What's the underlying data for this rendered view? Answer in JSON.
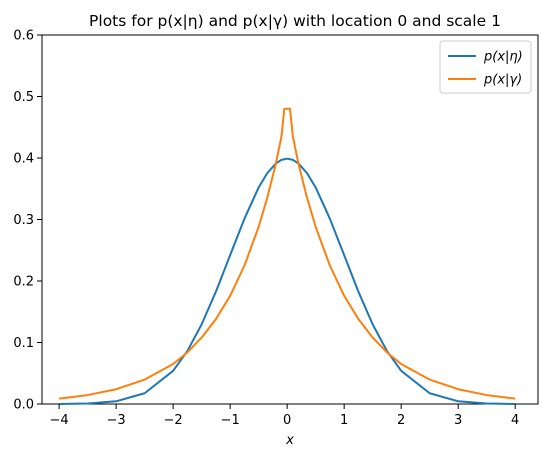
{
  "chart_data": {
    "type": "line",
    "title": "Plots for p(x|η) and p(x|γ) with location 0 and scale 1",
    "xlabel": "x",
    "ylabel": "",
    "xlim": [
      -4.3,
      4.4
    ],
    "ylim": [
      0,
      0.6
    ],
    "x_ticks": [
      -4,
      -3,
      -2,
      -1,
      0,
      1,
      2,
      3,
      4
    ],
    "x_tick_labels": [
      "−4",
      "−3",
      "−2",
      "−1",
      "0",
      "1",
      "2",
      "3",
      "4"
    ],
    "y_ticks": [
      0.0,
      0.1,
      0.2,
      0.3,
      0.4,
      0.5,
      0.6
    ],
    "y_tick_labels": [
      "0.0",
      "0.1",
      "0.2",
      "0.3",
      "0.4",
      "0.5",
      "0.6"
    ],
    "grid": false,
    "legend_position": "top-right",
    "colors": {
      "eta": "#1f77b4",
      "gamma": "#ff7f0e"
    },
    "x": [
      -4,
      -3.5,
      -3,
      -2.5,
      -2,
      -1.75,
      -1.5,
      -1.25,
      -1,
      -0.75,
      -0.5,
      -0.35,
      -0.2,
      -0.1,
      -0.05,
      0,
      0.05,
      0.1,
      0.2,
      0.35,
      0.5,
      0.75,
      1,
      1.25,
      1.5,
      1.75,
      2,
      2.5,
      3,
      3.5,
      4
    ],
    "series": [
      {
        "name": "p(x|η)",
        "values": [
          0.0001,
          0.0009,
          0.0044,
          0.0175,
          0.054,
          0.0863,
          0.1295,
          0.1826,
          0.242,
          0.3011,
          0.3521,
          0.3752,
          0.391,
          0.397,
          0.398,
          0.3989,
          0.398,
          0.397,
          0.391,
          0.3752,
          0.3521,
          0.3011,
          0.242,
          0.1826,
          0.1295,
          0.0863,
          0.054,
          0.0175,
          0.0044,
          0.0009,
          0.0001
        ]
      },
      {
        "name": "p(x|γ)",
        "values": [
          0.0088,
          0.0145,
          0.024,
          0.0397,
          0.065,
          0.084,
          0.108,
          0.138,
          0.176,
          0.225,
          0.288,
          0.335,
          0.39,
          0.435,
          0.48,
          0.48,
          0.48,
          0.435,
          0.39,
          0.335,
          0.288,
          0.225,
          0.176,
          0.138,
          0.108,
          0.084,
          0.065,
          0.0397,
          0.024,
          0.0145,
          0.0088
        ]
      }
    ]
  },
  "legend": {
    "items": [
      {
        "label": "p(x|η)",
        "color": "#1f77b4"
      },
      {
        "label": "p(x|γ)",
        "color": "#ff7f0e"
      }
    ]
  }
}
